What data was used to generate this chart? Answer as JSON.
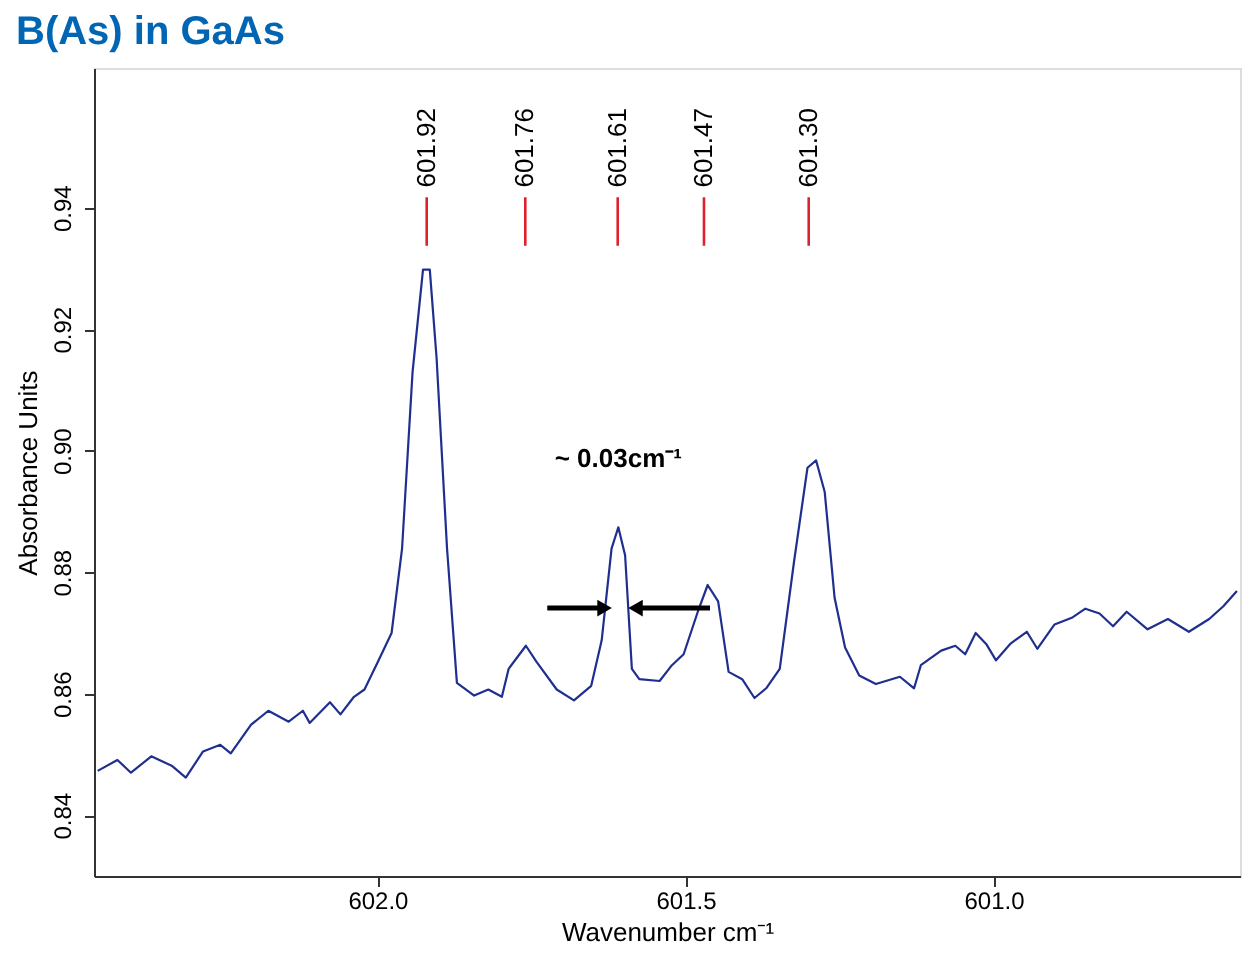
{
  "chart_data": {
    "type": "line",
    "title": "B(As) in GaAs",
    "xlabel": "Wavenumber cm⁻¹",
    "ylabel": "Absorbance Units",
    "x": [
      602.454,
      602.422,
      602.4,
      602.367,
      602.333,
      602.311,
      602.283,
      602.255,
      602.238,
      602.205,
      602.177,
      602.144,
      602.121,
      602.11,
      602.077,
      602.06,
      602.038,
      602.021,
      601.999,
      601.977,
      601.96,
      601.943,
      601.926,
      601.915,
      601.904,
      601.887,
      601.871,
      601.843,
      601.82,
      601.798,
      601.787,
      601.759,
      601.742,
      601.709,
      601.681,
      601.653,
      601.636,
      601.62,
      601.609,
      601.598,
      601.587,
      601.575,
      601.542,
      601.522,
      601.503,
      601.48,
      601.464,
      601.447,
      601.43,
      601.408,
      601.388,
      601.369,
      601.347,
      601.324,
      601.302,
      601.288,
      601.274,
      601.258,
      601.241,
      601.218,
      601.191,
      601.152,
      601.129,
      601.118,
      601.085,
      601.062,
      601.046,
      601.029,
      601.012,
      600.996,
      600.973,
      600.946,
      600.929,
      600.901,
      600.873,
      600.851,
      600.828,
      600.806,
      600.784,
      600.75,
      600.717,
      600.683,
      600.65,
      600.627,
      600.605
    ],
    "series": [
      {
        "color": "#1f2f8f",
        "values": [
          0.8473,
          0.8491,
          0.847,
          0.8497,
          0.8481,
          0.8462,
          0.8505,
          0.8516,
          0.8502,
          0.8549,
          0.8572,
          0.8554,
          0.8572,
          0.8552,
          0.8586,
          0.8566,
          0.8595,
          0.8607,
          0.8653,
          0.87,
          0.8839,
          0.9129,
          0.9298,
          0.9298,
          0.9153,
          0.8839,
          0.8618,
          0.8597,
          0.8607,
          0.8595,
          0.8641,
          0.8679,
          0.8653,
          0.8607,
          0.8589,
          0.8613,
          0.8688,
          0.8839,
          0.8874,
          0.8828,
          0.8641,
          0.8624,
          0.8621,
          0.8647,
          0.8665,
          0.8735,
          0.8779,
          0.8752,
          0.8636,
          0.8624,
          0.8593,
          0.8609,
          0.8641,
          0.8816,
          0.8972,
          0.8984,
          0.8932,
          0.8758,
          0.8676,
          0.863,
          0.8616,
          0.8628,
          0.8609,
          0.8647,
          0.8671,
          0.8679,
          0.8665,
          0.87,
          0.8682,
          0.8655,
          0.8682,
          0.8702,
          0.8674,
          0.8714,
          0.8725,
          0.874,
          0.8732,
          0.8711,
          0.8735,
          0.8706,
          0.8723,
          0.8702,
          0.8723,
          0.8744,
          0.8769
        ]
      }
    ],
    "xlim": [
      602.46,
      600.6
    ],
    "xticks": [
      {
        "value": 602,
        "label": "602.0"
      },
      {
        "value": 601.5,
        "label": "601.5"
      },
      {
        "value": 601,
        "label": "601.0"
      }
    ],
    "ylim": [
      0.83,
      0.963
    ],
    "yticks": [
      0.84,
      0.86,
      0.88,
      {
        "value": 0.9,
        "label": "0.90"
      },
      0.92,
      0.94
    ],
    "ref_lines": [
      {
        "axis": "x",
        "value": 601.92,
        "label": "601.92",
        "color": "#e0202c"
      },
      {
        "axis": "x",
        "value": 601.76,
        "label": "601.76",
        "color": "#e0202c"
      },
      {
        "axis": "x",
        "value": 601.61,
        "label": "601.61",
        "color": "#e0202c"
      },
      {
        "axis": "x",
        "value": 601.47,
        "label": "601.47",
        "color": "#e0202c"
      },
      {
        "axis": "x",
        "value": 601.3,
        "label": "601.30",
        "color": "#e0202c"
      }
    ],
    "annotations": [
      {
        "text": "~ 0.03cm⁻¹",
        "x": 601.609,
        "y": 0.8874
      }
    ],
    "grid": false,
    "marker": "none",
    "line_style": "solid"
  }
}
